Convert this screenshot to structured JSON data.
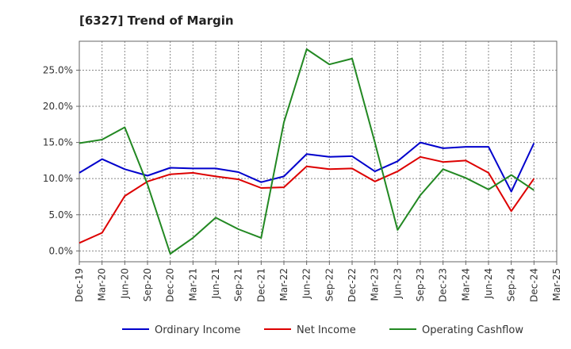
{
  "chart_data": {
    "type": "line",
    "title": "[6327]  Trend of Margin",
    "xlabel": "",
    "ylabel": "",
    "x": [
      "Dec-19",
      "Mar-20",
      "Jun-20",
      "Sep-20",
      "Dec-20",
      "Mar-21",
      "Jun-21",
      "Sep-21",
      "Dec-21",
      "Mar-22",
      "Jun-22",
      "Sep-22",
      "Dec-22",
      "Mar-23",
      "Jun-23",
      "Sep-23",
      "Dec-23",
      "Mar-24",
      "Jun-24",
      "Sep-24",
      "Dec-24",
      "Mar-25"
    ],
    "y_ticks": [
      "0.0%",
      "5.0%",
      "10.0%",
      "15.0%",
      "20.0%",
      "25.0%"
    ],
    "ylim": [
      -1.5,
      29
    ],
    "grid": true,
    "legend_position": "bottom",
    "series": [
      {
        "name": "Ordinary Income",
        "color": "#0000cc",
        "values": [
          10.8,
          12.7,
          11.3,
          10.4,
          11.5,
          11.4,
          11.4,
          10.9,
          9.5,
          10.3,
          13.4,
          13.0,
          13.1,
          11.0,
          12.4,
          15.0,
          14.2,
          14.4,
          14.4,
          8.2,
          14.9,
          null
        ]
      },
      {
        "name": "Net Income",
        "color": "#dd0000",
        "values": [
          1.1,
          2.5,
          7.6,
          9.6,
          10.6,
          10.8,
          10.3,
          9.9,
          8.7,
          8.8,
          11.7,
          11.3,
          11.4,
          9.6,
          11.0,
          13.0,
          12.3,
          12.5,
          10.8,
          5.5,
          10.0,
          null
        ]
      },
      {
        "name": "Operating Cashflow",
        "color": "#228822",
        "values": [
          14.9,
          15.4,
          17.1,
          9.2,
          -0.4,
          1.8,
          4.6,
          3.0,
          1.8,
          17.8,
          27.9,
          25.8,
          26.6,
          15.0,
          2.9,
          7.7,
          11.3,
          10.1,
          8.5,
          10.5,
          8.4,
          null
        ]
      }
    ]
  }
}
